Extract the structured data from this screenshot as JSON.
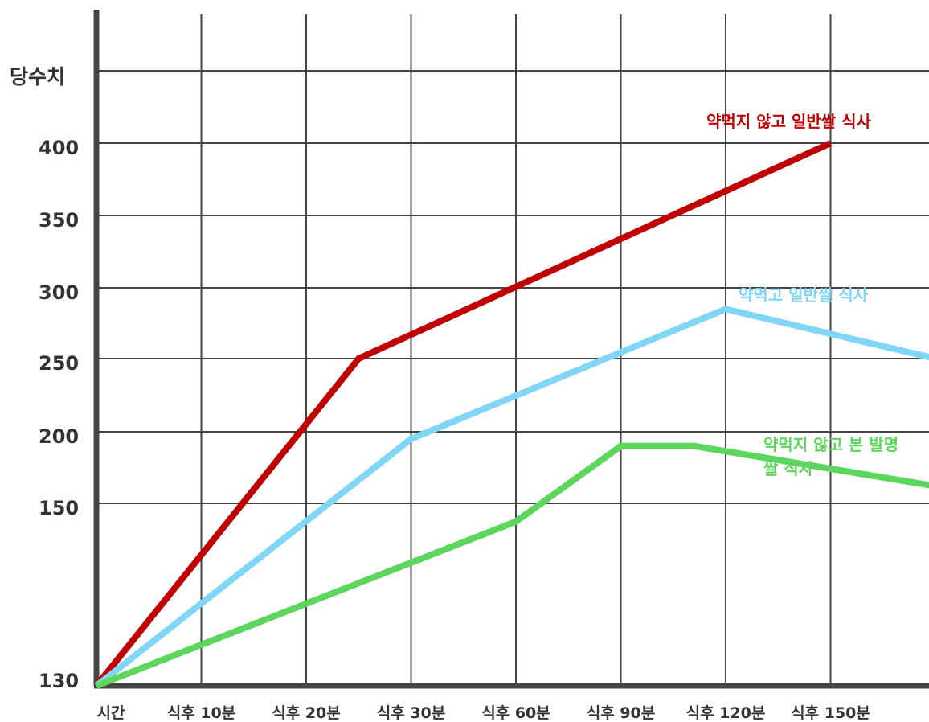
{
  "chart_data": {
    "type": "line",
    "ylabel": "당수치",
    "xlabel": "",
    "categories": [
      "시간",
      "식후 10분",
      "식후 20분",
      "식후 30분",
      "식후 60분",
      "식후 90분",
      "식후 120분",
      "식후 150분"
    ],
    "yticks": [
      130,
      150,
      200,
      250,
      300,
      350,
      400
    ],
    "grid": true,
    "legend": "inline",
    "series": [
      {
        "name": "약먹지 않고 일반쌀 식사",
        "color": "#c00000",
        "points": [
          [
            0,
            130
          ],
          [
            2.5,
            250
          ],
          [
            7,
            400
          ]
        ]
      },
      {
        "name": "약먹고 일반쌀 식사",
        "color": "#7fd6f7",
        "points": [
          [
            0,
            130
          ],
          [
            3,
            195
          ],
          [
            6,
            285
          ],
          [
            8,
            250
          ]
        ]
      },
      {
        "name_lines": [
          "약먹지 않고 본 발명",
          "쌀 식사"
        ],
        "color": "#5cd65c",
        "points": [
          [
            0,
            130
          ],
          [
            4,
            148
          ],
          [
            5,
            190
          ],
          [
            5.7,
            190
          ],
          [
            8,
            162
          ]
        ]
      }
    ]
  }
}
